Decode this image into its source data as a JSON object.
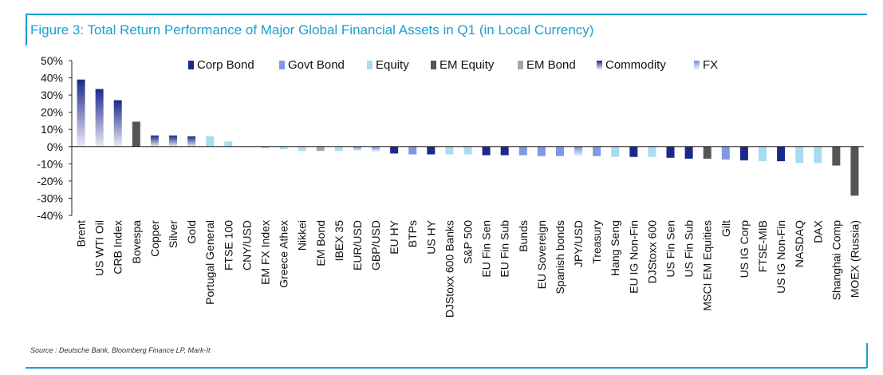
{
  "figure": {
    "title": "Figure 3: Total Return Performance of Major Global Financial Assets in Q1 (in Local Currency)",
    "source": "Source : Deutsche Bank, Bloomberg Finance LP, Mark-It"
  },
  "chart_data": {
    "type": "bar",
    "title": "Figure 3: Total Return Performance of Major Global Financial Assets in Q1 (in Local Currency)",
    "xlabel": "",
    "ylabel": "",
    "ylim": [
      -40,
      50
    ],
    "yticks": [
      50,
      40,
      30,
      20,
      10,
      0,
      -10,
      -20,
      -30,
      -40
    ],
    "ytick_labels": [
      "50%",
      "40%",
      "30%",
      "20%",
      "10%",
      "0%",
      "-10%",
      "-20%",
      "-30%",
      "-40%"
    ],
    "legend_position": "top",
    "legend": [
      {
        "name": "Corp Bond",
        "color": "#1b2a8a",
        "style": "solid"
      },
      {
        "name": "Govt Bond",
        "color": "#7f98e6",
        "style": "solid"
      },
      {
        "name": "Equity",
        "color": "#a9dcf2",
        "style": "solid"
      },
      {
        "name": "EM Equity",
        "color": "#555555",
        "style": "solid"
      },
      {
        "name": "EM Bond",
        "color": "#a6a6a6",
        "style": "solid"
      },
      {
        "name": "Commodity",
        "color": "#1b2a8a",
        "style": "gradient"
      },
      {
        "name": "FX",
        "color": "#6f92e6",
        "style": "gradient"
      }
    ],
    "categories": [
      "Brent",
      "US WTI Oil",
      "CRB Index",
      "Bovespa",
      "Copper",
      "Silver",
      "Gold",
      "Portugal General",
      "FTSE 100",
      "CNY/USD",
      "EM FX Index",
      "Greece Athex",
      "Nikkei",
      "EM Bond",
      "IBEX 35",
      "EUR/USD",
      "GBP/USD",
      "EU HY",
      "BTPs",
      "US HY",
      "DJStoxx 600 Banks",
      "S&P 500",
      "EU Fin Sen",
      "EU Fin Sub",
      "Bunds",
      "EU Sovereign",
      "Spanish bonds",
      "JPY/USD",
      "Treasury",
      "Hang Seng",
      "EU IG Non-Fin",
      "DJStoxx 600",
      "US Fin Sen",
      "US Fin Sub",
      "MSCI EM Equities",
      "Gilt",
      "US IG Corp",
      "FTSE-MIB",
      "US IG Non-Fin",
      "NASDAQ",
      "DAX",
      "Shanghai Comp",
      "MOEX (Russia)"
    ],
    "values": [
      39,
      33.5,
      27,
      14.5,
      6.5,
      6.5,
      6,
      6,
      3,
      0,
      -1,
      -1.5,
      -2.5,
      -2.5,
      -2.5,
      -2.5,
      -3,
      -4,
      -4.5,
      -4.5,
      -4.5,
      -4.5,
      -5,
      -5,
      -5,
      -5.5,
      -5.5,
      -5.5,
      -5.5,
      -6,
      -6,
      -6,
      -6.5,
      -7,
      -7,
      -7.5,
      -8,
      -8.5,
      -8.5,
      -9.5,
      -9.5,
      -11,
      -28.5
    ],
    "series_of_category": [
      "Commodity",
      "Commodity",
      "Commodity",
      "EM Equity",
      "Commodity",
      "Commodity",
      "Commodity",
      "Equity",
      "Equity",
      "FX",
      "FX",
      "Equity",
      "Equity",
      "EM Bond",
      "Equity",
      "FX",
      "FX",
      "Corp Bond",
      "Govt Bond",
      "Corp Bond",
      "Equity",
      "Equity",
      "Corp Bond",
      "Corp Bond",
      "Govt Bond",
      "Govt Bond",
      "Govt Bond",
      "FX",
      "Govt Bond",
      "Equity",
      "Corp Bond",
      "Equity",
      "Corp Bond",
      "Corp Bond",
      "EM Equity",
      "Govt Bond",
      "Corp Bond",
      "Equity",
      "Corp Bond",
      "Equity",
      "Equity",
      "EM Equity",
      "EM Equity"
    ]
  }
}
